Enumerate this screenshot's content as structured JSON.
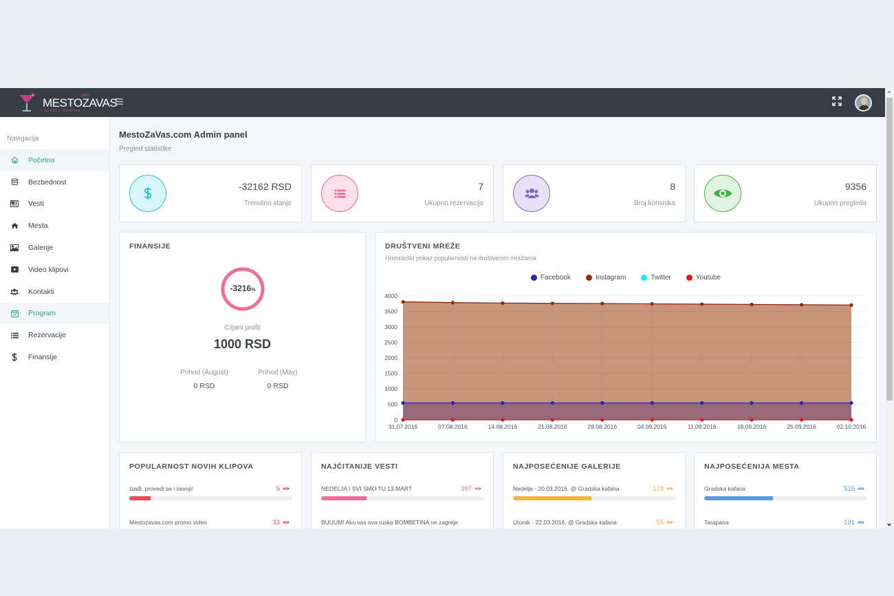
{
  "app": {
    "logo_text": "MESTOZAVAS",
    "logo_tag": "uzivaj u mestima",
    "logo_com": ".com"
  },
  "sidebar": {
    "heading": "Navigacija",
    "items": [
      {
        "label": "Početna",
        "icon": "home-icon",
        "active": true
      },
      {
        "label": "Bezbednost",
        "icon": "database-icon",
        "active": false
      },
      {
        "label": "Vesti",
        "icon": "newspaper-icon",
        "active": false
      },
      {
        "label": "Mesta",
        "icon": "house-icon",
        "active": false
      },
      {
        "label": "Galerije",
        "icon": "image-icon",
        "active": false
      },
      {
        "label": "Video klipovi",
        "icon": "video-icon",
        "active": false
      },
      {
        "label": "Kontakti",
        "icon": "users-icon",
        "active": false
      },
      {
        "label": "Program",
        "icon": "calendar-check-icon",
        "active": true
      },
      {
        "label": "Rezervacije",
        "icon": "list-icon",
        "active": false
      },
      {
        "label": "Finansije",
        "icon": "dollar-icon",
        "active": false
      }
    ]
  },
  "header": {
    "title": "MestoZaVas.com Admin panel",
    "subtitle": "Pregled statistike"
  },
  "stats": [
    {
      "value": "-32162",
      "unit": "RSD",
      "caption": "Trenutno stanje",
      "icon": "dollar-icon",
      "color": "#29c4d6",
      "bg": "#d8f6fa"
    },
    {
      "value": "7",
      "unit": "",
      "caption": "Ukupno rezervacija",
      "icon": "list-icon",
      "color": "#f0649a",
      "bg": "#fde0ea"
    },
    {
      "value": "8",
      "unit": "",
      "caption": "Broj korisnika",
      "icon": "users-icon",
      "color": "#7b68c9",
      "bg": "#e6e1f7"
    },
    {
      "value": "9356",
      "unit": "",
      "caption": "Ukupno pregleda",
      "icon": "eye-icon",
      "color": "#43b343",
      "bg": "#e0f4df"
    }
  ],
  "finance": {
    "title": "FINANSIJE",
    "donut_value": "-3216",
    "donut_unit": "%",
    "donut_color": "#f06d9c",
    "target_label": "Ciljani profit",
    "target_value": "1000 RSD",
    "income": [
      {
        "label": "Prihod (August)",
        "value": "0 RSD"
      },
      {
        "label": "Prihod (May)",
        "value": "0 RSD"
      }
    ]
  },
  "social": {
    "title": "DRUŠTVENI MREŽE",
    "subtitle": "Hronološki prikaz popularnosti na društvenim mrežama"
  },
  "chart_data": {
    "type": "area",
    "x": [
      "31.07.2016",
      "07.08.2016",
      "14.08.2016",
      "21.08.2016",
      "28.08.2016",
      "04.09.2016",
      "11.09.2016",
      "18.09.2016",
      "25.09.2016",
      "02.10.2016"
    ],
    "yticks": [
      0,
      500,
      1000,
      1500,
      2000,
      2500,
      3000,
      3500,
      4000
    ],
    "ylim": [
      0,
      4000
    ],
    "legend_position": "top",
    "grid": true,
    "series": [
      {
        "name": "Facebook",
        "color": "#1a2db8",
        "values": [
          545,
          545,
          545,
          545,
          545,
          545,
          545,
          545,
          545,
          545
        ]
      },
      {
        "name": "Instagram",
        "color": "#8b2e12",
        "values": [
          3810,
          3785,
          3770,
          3760,
          3755,
          3745,
          3735,
          3725,
          3715,
          3705
        ]
      },
      {
        "name": "Twitter",
        "color": "#1ee8ee",
        "values": [
          0,
          0,
          0,
          0,
          0,
          0,
          0,
          0,
          0,
          0
        ]
      },
      {
        "name": "Youtube",
        "color": "#e8141c",
        "values": [
          0,
          0,
          0,
          0,
          0,
          0,
          0,
          0,
          0,
          0
        ]
      }
    ]
  },
  "popular": [
    {
      "title": "POPULARNOST NOVIH KLIPOVA",
      "color": "#ee4a55",
      "rows": [
        {
          "name": "Izađi, provedi se i osvoji!",
          "count": "5",
          "fraction": 0.13
        },
        {
          "name": "Mestozavas.com promo video",
          "count": "33",
          "fraction": 0.0
        }
      ]
    },
    {
      "title": "NAJČITANIJE VESTI",
      "color": "#f06d9c",
      "rows": [
        {
          "name": "NEDELJA I SVI SMO TU 13.MART",
          "count": "397",
          "fraction": 0.28
        },
        {
          "name": "BUUUM! Ako vas ova ruska BOMBETINA ne zagreje, nista",
          "count": "",
          "fraction": 0.0
        }
      ]
    },
    {
      "title": "NAJPOSEĆENIJE GALERIJE",
      "color": "#f5b53d",
      "rows": [
        {
          "name": "Nedelja - 20.03.2016. @ Gradska kafana",
          "count": "178",
          "fraction": 0.48
        },
        {
          "name": "Utorak - 22.03.2016. @ Gradska kafana",
          "count": "55",
          "fraction": 0.0
        }
      ]
    },
    {
      "title": "NAJPOSEĆENIJA MESTA",
      "color": "#5b9be6",
      "rows": [
        {
          "name": "Gradska kafana",
          "count": "515",
          "fraction": 0.42
        },
        {
          "name": "Tarapana",
          "count": "191",
          "fraction": 0.0
        }
      ]
    }
  ]
}
